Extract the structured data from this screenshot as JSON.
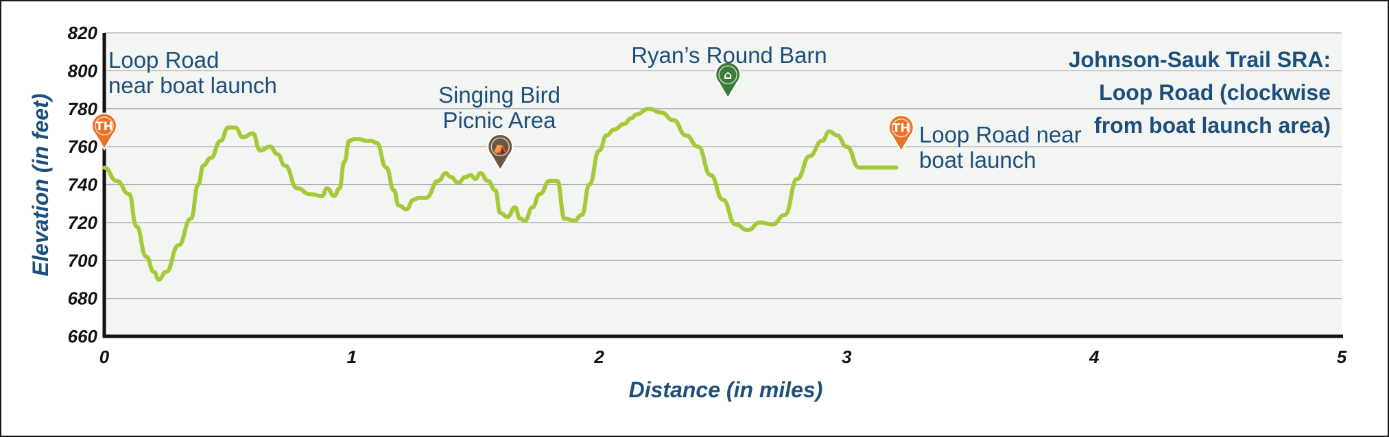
{
  "chart_data": {
    "type": "line",
    "title_lines": [
      "Johnson-Sauk Trail SRA:",
      "Loop Road (clockwise",
      "from boat launch area)"
    ],
    "xlabel": "Distance (in miles)",
    "ylabel": "Elevation (in feet)",
    "xlim": [
      0,
      5
    ],
    "ylim": [
      660,
      820
    ],
    "x_ticks": [
      0,
      1,
      2,
      3,
      4,
      5
    ],
    "y_ticks": [
      660,
      680,
      700,
      720,
      740,
      760,
      780,
      800,
      820
    ],
    "grid": "horizontal",
    "line_color": "#a6c93a",
    "series": [
      {
        "x": [
          0,
          0.05,
          0.1,
          0.13,
          0.17,
          0.2,
          0.22,
          0.25,
          0.3,
          0.35,
          0.38,
          0.4,
          0.43,
          0.47,
          0.5,
          0.53,
          0.56,
          0.6,
          0.63,
          0.67,
          0.7,
          0.73,
          0.78,
          0.83,
          0.88,
          0.9,
          0.93,
          0.95,
          0.97,
          0.99,
          1.01,
          1.03,
          1.06,
          1.08,
          1.1,
          1.14,
          1.17,
          1.19,
          1.22,
          1.25,
          1.27,
          1.3,
          1.35,
          1.38,
          1.4,
          1.43,
          1.46,
          1.48,
          1.5,
          1.52,
          1.55,
          1.58,
          1.6,
          1.63,
          1.66,
          1.68,
          1.7,
          1.73,
          1.76,
          1.8,
          1.83,
          1.86,
          1.9,
          1.93,
          1.96,
          2.0,
          2.03,
          2.06,
          2.1,
          2.13,
          2.15,
          2.2,
          2.25,
          2.3,
          2.35,
          2.4,
          2.45,
          2.5,
          2.55,
          2.6,
          2.65,
          2.7,
          2.75,
          2.8,
          2.85,
          2.9,
          2.93,
          2.96,
          3.0,
          3.05,
          3.1,
          3.13,
          3.16,
          3.2
        ],
        "values": [
          749,
          742,
          735,
          718,
          702,
          694,
          690,
          694,
          708,
          722,
          740,
          750,
          754,
          763,
          770,
          770,
          765,
          767,
          758,
          760,
          756,
          750,
          738,
          735,
          734,
          738,
          734,
          738,
          752,
          763,
          764,
          764,
          763,
          763,
          762,
          749,
          737,
          729,
          727,
          732,
          733,
          733,
          742,
          746,
          744,
          741,
          744,
          745,
          743,
          746,
          742,
          737,
          725,
          723,
          728,
          722,
          721,
          728,
          735,
          742,
          742,
          722,
          721,
          724,
          740,
          758,
          766,
          769,
          772,
          775,
          777,
          780,
          778,
          774,
          766,
          760,
          745,
          732,
          719,
          716,
          720,
          719,
          724,
          743,
          755,
          763,
          768,
          766,
          760,
          749,
          749,
          749,
          749,
          749
        ]
      }
    ],
    "markers": [
      {
        "name": "trailhead-start",
        "x": 0.0,
        "y": 768,
        "glyph": "TH",
        "color": "#e8742a"
      },
      {
        "name": "picnic",
        "x": 1.6,
        "y": 757,
        "glyph": "⛺",
        "color": "#6b5640"
      },
      {
        "name": "barn",
        "x": 2.52,
        "y": 795,
        "glyph": "⌂",
        "color": "#3d7b3a"
      },
      {
        "name": "trailhead-end",
        "x": 3.22,
        "y": 767,
        "glyph": "TH",
        "color": "#e8742a"
      }
    ],
    "annotations": [
      {
        "name": "start-label",
        "lines": [
          "Loop Road",
          "near boat launch"
        ]
      },
      {
        "name": "picnic-label",
        "lines": [
          "Singing Bird",
          "Picnic Area"
        ]
      },
      {
        "name": "barn-label",
        "lines": [
          "Ryan’s Round Barn"
        ]
      },
      {
        "name": "end-label",
        "lines": [
          "Loop Road near",
          "boat launch"
        ]
      }
    ]
  }
}
